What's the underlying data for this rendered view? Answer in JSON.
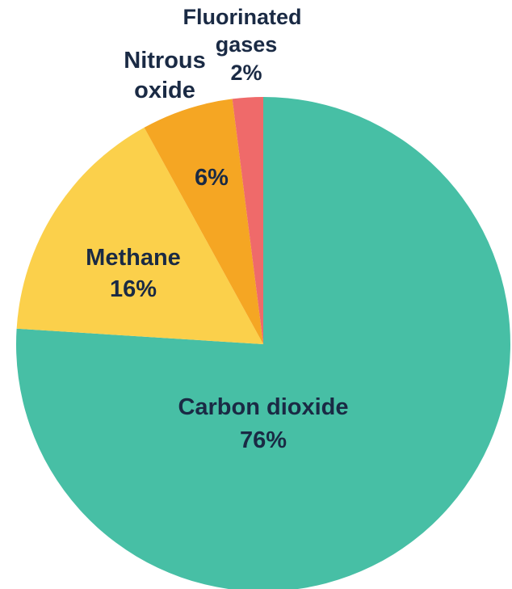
{
  "chart_data": {
    "type": "pie",
    "title": "",
    "start_angle_deg": 0,
    "direction": "clockwise",
    "slices": [
      {
        "label": "Carbon dioxide",
        "value": 76,
        "value_label": "76%",
        "color": "#47bfa5"
      },
      {
        "label": "Methane",
        "value": 16,
        "value_label": "16%",
        "color": "#fbd04b"
      },
      {
        "label": "Nitrous oxide",
        "value": 6,
        "value_label": "6%",
        "color": "#f5a623"
      },
      {
        "label": "Fluorinated gases",
        "value": 2,
        "value_label": "2%",
        "color": "#ef6a6a"
      }
    ],
    "labels": {
      "carbon_dioxide_line1": "Carbon dioxide",
      "carbon_dioxide_line2": "76%",
      "methane_line1": "Methane",
      "methane_line2": "16%",
      "nitrous_line1": "Nitrous",
      "nitrous_line2": "oxide",
      "nitrous_value": "6%",
      "fluorinated_line1": "Fluorinated",
      "fluorinated_line2": "gases",
      "fluorinated_value": "2%"
    }
  }
}
